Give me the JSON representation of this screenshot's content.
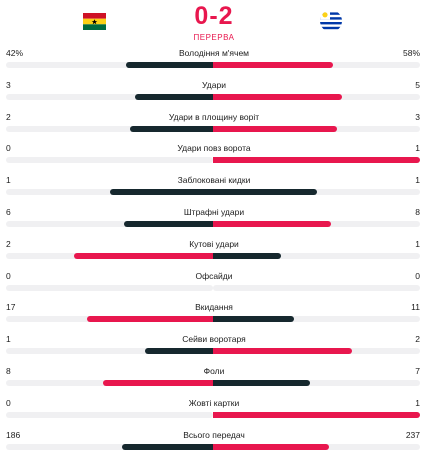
{
  "match": {
    "score": "0-2",
    "status": "ПЕРЕРВА",
    "home_flag": "ghana-flag",
    "away_flag": "uruguay-flag"
  },
  "colors": {
    "winner": "#e8174e",
    "loser": "#16282e",
    "track": "#f0f0f2"
  },
  "stats": [
    {
      "title": "Володіння м'ячем",
      "home": "42%",
      "away": "58%",
      "home_share": 0.42,
      "away_share": 0.58
    },
    {
      "title": "Удари",
      "home": "3",
      "away": "5",
      "home_share": 0.375,
      "away_share": 0.625
    },
    {
      "title": "Удари в площину воріт",
      "home": "2",
      "away": "3",
      "home_share": 0.4,
      "away_share": 0.6
    },
    {
      "title": "Удари повз ворота",
      "home": "0",
      "away": "1",
      "home_share": 0.0,
      "away_share": 1.0
    },
    {
      "title": "Заблоковані кидки",
      "home": "1",
      "away": "1",
      "home_share": 0.5,
      "away_share": 0.5
    },
    {
      "title": "Штрафні удари",
      "home": "6",
      "away": "8",
      "home_share": 0.43,
      "away_share": 0.57
    },
    {
      "title": "Кутові удари",
      "home": "2",
      "away": "1",
      "home_share": 0.67,
      "away_share": 0.33
    },
    {
      "title": "Офсайди",
      "home": "0",
      "away": "0",
      "home_share": 0.0,
      "away_share": 0.0
    },
    {
      "title": "Вкидання",
      "home": "17",
      "away": "11",
      "home_share": 0.61,
      "away_share": 0.39
    },
    {
      "title": "Сейви воротаря",
      "home": "1",
      "away": "2",
      "home_share": 0.33,
      "away_share": 0.67
    },
    {
      "title": "Фоли",
      "home": "8",
      "away": "7",
      "home_share": 0.53,
      "away_share": 0.47
    },
    {
      "title": "Жовті картки",
      "home": "0",
      "away": "1",
      "home_share": 0.0,
      "away_share": 1.0
    },
    {
      "title": "Всього передач",
      "home": "186",
      "away": "237",
      "home_share": 0.44,
      "away_share": 0.56
    }
  ]
}
